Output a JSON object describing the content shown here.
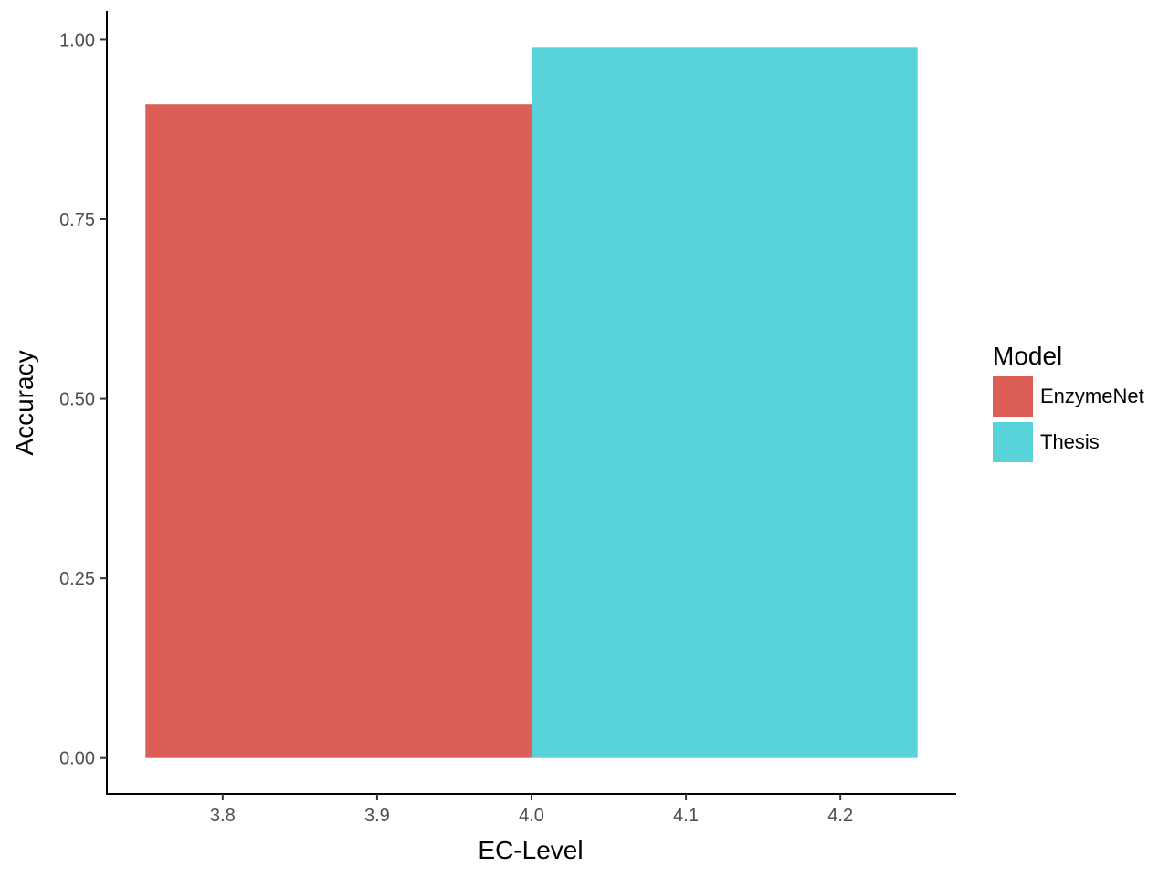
{
  "chart_data": {
    "type": "bar",
    "xlabel": "EC-Level",
    "ylabel": "Accuracy",
    "xlim": [
      3.725,
      4.275
    ],
    "ylim": [
      -0.05,
      1.04
    ],
    "x_ticks": [
      "3.8",
      "3.9",
      "4.0",
      "4.1",
      "4.2"
    ],
    "y_ticks": [
      "0.00",
      "0.25",
      "0.50",
      "0.75",
      "1.00"
    ],
    "grid": false,
    "legend_position": "right",
    "legend_title": "Model",
    "series": [
      {
        "name": "EnzymeNet",
        "x_start": 3.75,
        "x_end": 4.0,
        "value": 0.91,
        "color": "#dc5f57"
      },
      {
        "name": "Thesis",
        "x_start": 4.0,
        "x_end": 4.25,
        "value": 0.99,
        "color": "#59d3da"
      }
    ]
  }
}
